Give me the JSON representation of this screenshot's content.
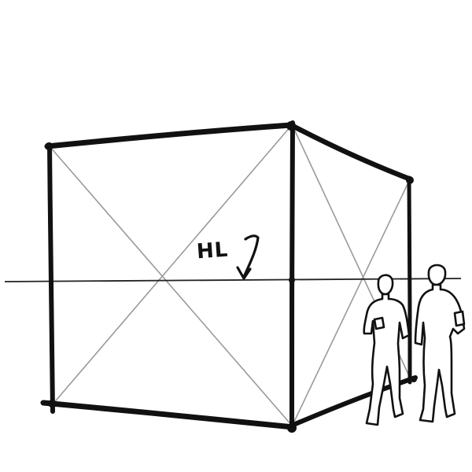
{
  "sketch": {
    "horizon_label": "HL",
    "ink_color": "#111111",
    "guide_color": "#9a9a9a",
    "background_color": "#ffffff",
    "figures_count": 2
  }
}
